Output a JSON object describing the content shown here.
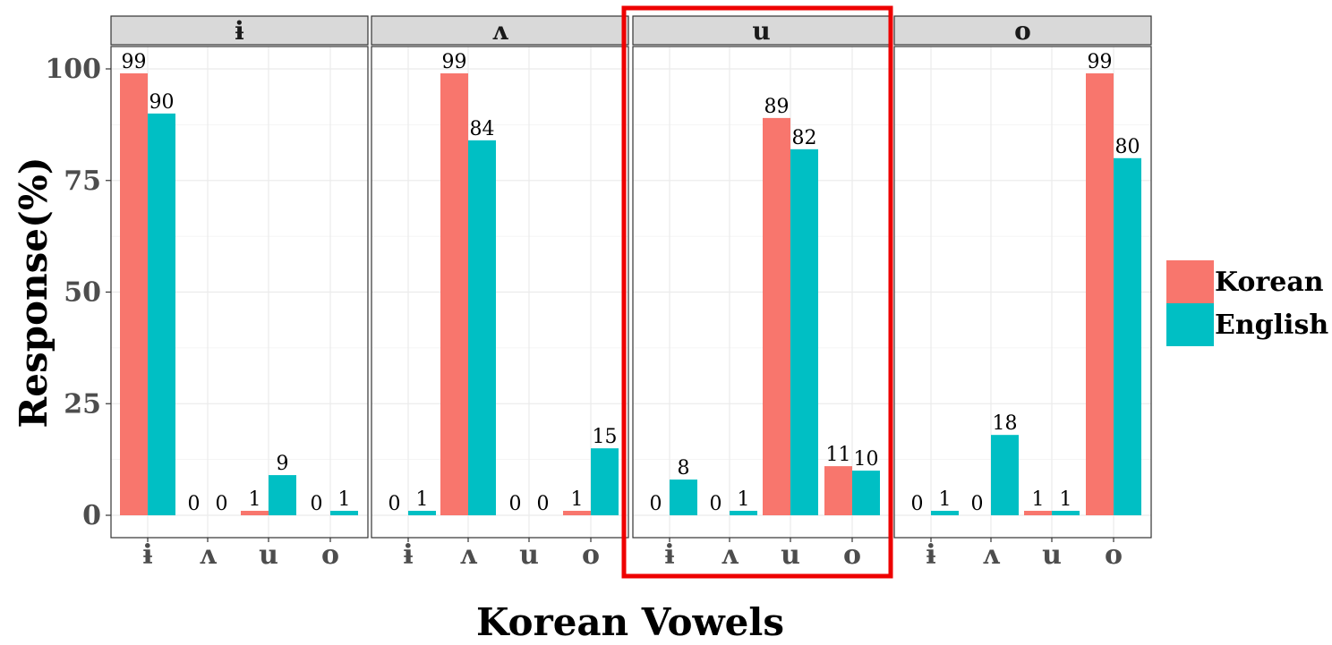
{
  "chart_data": {
    "type": "bar",
    "xlabel": "Korean Vowels",
    "ylabel": "Response(%)",
    "ylim": [
      0,
      110
    ],
    "yticks": [
      0,
      25,
      50,
      75,
      100
    ],
    "grid": true,
    "legend_position": "right",
    "categories": [
      "ɨ",
      "ʌ",
      "u",
      "o"
    ],
    "highlighted_panel": "u",
    "colors": {
      "Korean": "#F8766D",
      "English": "#00BFC4",
      "highlight": "#EE0000",
      "strip": "#D9D9D9"
    },
    "panels": [
      {
        "title": "ɨ",
        "series": [
          {
            "name": "Korean",
            "values": [
              99,
              0,
              1,
              0
            ]
          },
          {
            "name": "English",
            "values": [
              90,
              0,
              9,
              1
            ]
          }
        ]
      },
      {
        "title": "ʌ",
        "series": [
          {
            "name": "Korean",
            "values": [
              0,
              99,
              0,
              1
            ]
          },
          {
            "name": "English",
            "values": [
              1,
              84,
              0,
              15
            ]
          }
        ]
      },
      {
        "title": "u",
        "series": [
          {
            "name": "Korean",
            "values": [
              0,
              0,
              89,
              11
            ]
          },
          {
            "name": "English",
            "values": [
              8,
              1,
              82,
              10
            ]
          }
        ]
      },
      {
        "title": "o",
        "series": [
          {
            "name": "Korean",
            "values": [
              0,
              0,
              1,
              99
            ]
          },
          {
            "name": "English",
            "values": [
              1,
              18,
              1,
              80
            ]
          }
        ]
      }
    ]
  }
}
